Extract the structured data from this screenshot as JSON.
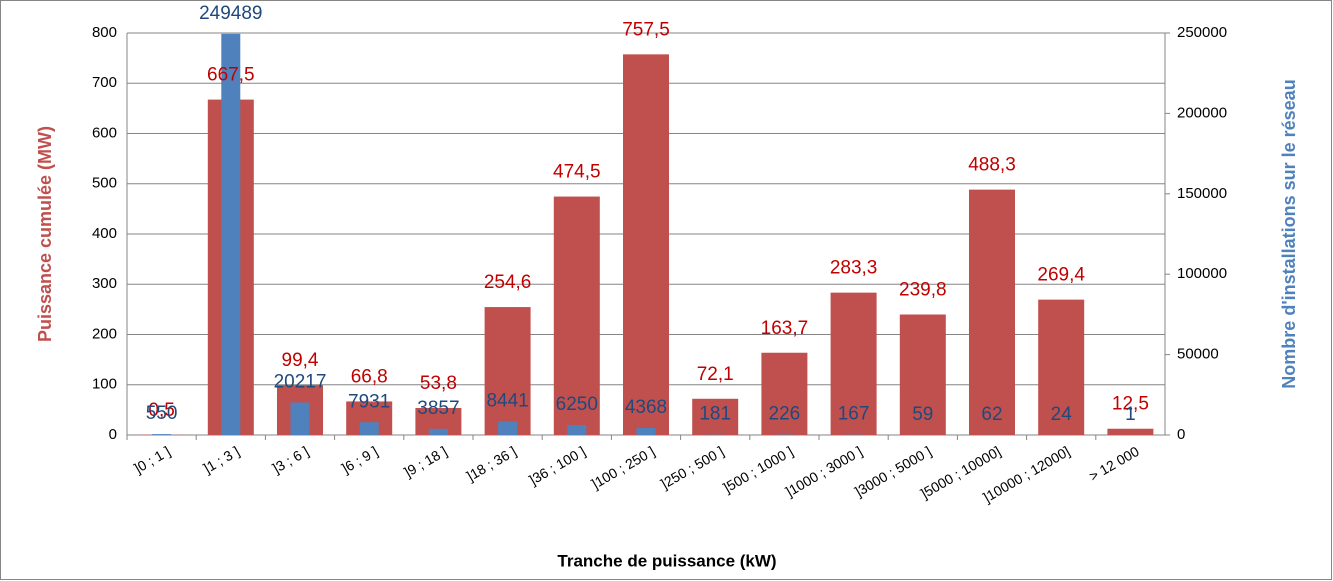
{
  "chart_data": {
    "type": "bar",
    "xlabel": "Tranche de puissance (kW)",
    "ylabel": "Puissance cumulée (MW)",
    "y2label": "Nombre d'installations sur le réseau",
    "categories": [
      "]0 ; 1 ]",
      "]1 ; 3 ]",
      "]3 ; 6 ]",
      "]6 ; 9 ]",
      "]9 ; 18 ]",
      "]18 ; 36 ]",
      "]36 ; 100 ]",
      "]100 ; 250 ]",
      "]250 ; 500 ]",
      "]500 ; 1000 ]",
      "]1000 ; 3000 ]",
      "]3000 ; 5000 ]",
      "]5000 ; 10000]",
      "]10000 ; 12000]",
      "> 12 000"
    ],
    "series": [
      {
        "color": "#c0504d",
        "label_color": "#c00000",
        "axis": "y",
        "values": [
          0.5,
          667.5,
          99.4,
          66.8,
          53.8,
          254.6,
          474.5,
          757.5,
          72.1,
          163.7,
          283.3,
          239.8,
          488.3,
          269.4,
          12.5
        ],
        "value_labels": [
          "0,5",
          "667,5",
          "99,4",
          "66,8",
          "53,8",
          "254,6",
          "474,5",
          "757,5",
          "72,1",
          "163,7",
          "283,3",
          "239,8",
          "488,3",
          "269,4",
          "12,5"
        ]
      },
      {
        "color": "#4f81bd",
        "label_color": "#1f497d",
        "axis": "y2",
        "values": [
          550,
          249489,
          20217,
          7931,
          3857,
          8441,
          6250,
          4368,
          181,
          226,
          167,
          59,
          62,
          24,
          1
        ]
      }
    ],
    "ylim": [
      0,
      800
    ],
    "yticks": [
      0,
      100,
      200,
      300,
      400,
      500,
      600,
      700,
      800
    ],
    "y2lim": [
      0,
      250000
    ],
    "y2ticks": [
      0,
      50000,
      100000,
      150000,
      200000,
      250000
    ],
    "grid": true
  }
}
